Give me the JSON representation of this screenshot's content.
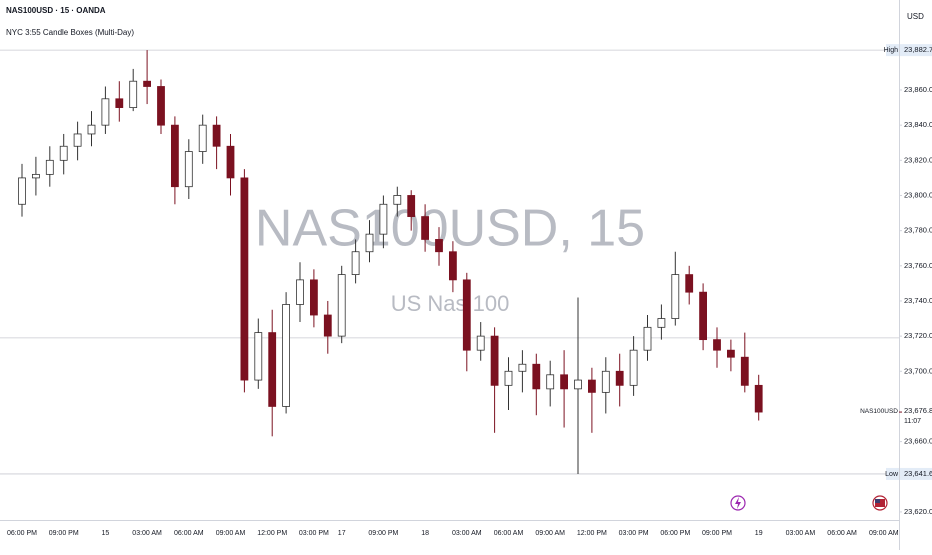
{
  "chart_data": {
    "type": "candlestick",
    "title": "NAS100USD · 15 · OANDA",
    "subtitle": "NYC 3:55 Candle Boxes (Multi-Day)",
    "watermark": "NAS100USD, 15",
    "watermark_subtitle": "US Nas 100",
    "currency": "USD",
    "categories": [
      "06:00 PM",
      null,
      null,
      "09:00 PM",
      null,
      null,
      "15",
      null,
      null,
      "03:00 AM",
      null,
      null,
      "06:00 AM",
      null,
      null,
      "09:00 AM",
      null,
      null,
      "12:00 PM",
      null,
      null,
      "03:00 PM",
      null,
      "17",
      null,
      null,
      "09:00 PM",
      null,
      null,
      "18",
      null,
      null,
      "03:00 AM",
      null,
      null,
      "06:00 AM",
      null,
      null,
      "09:00 AM",
      null,
      null,
      "12:00 PM",
      null,
      null,
      "03:00 PM",
      null,
      null,
      "06:00 PM",
      null,
      null,
      "09:00 PM",
      null,
      null,
      "19",
      null,
      null,
      "03:00 AM",
      null,
      null,
      "06:00 AM",
      null,
      null,
      "09:00 AM",
      null
    ],
    "open": [
      23795,
      23810,
      23812,
      23820,
      23828,
      23835,
      23840,
      23855,
      23850,
      23865,
      23862,
      23840,
      23805,
      23825,
      23840,
      23828,
      23810,
      23695,
      23722,
      23680,
      23738,
      23752,
      23732,
      23720,
      23755,
      23768,
      23778,
      23795,
      23800,
      23788,
      23775,
      23768,
      23752,
      23712,
      23720,
      23692,
      23700,
      23704,
      23690,
      23698,
      23690,
      23695,
      23688,
      23700,
      23692,
      23712,
      23725,
      23730,
      23755,
      23745,
      23718,
      23712,
      23708,
      23692,
      null,
      null,
      null,
      null,
      null,
      null,
      null,
      null,
      null,
      null
    ],
    "high": [
      23818,
      23822,
      23828,
      23835,
      23842,
      23848,
      23862,
      23865,
      23872,
      23882.7,
      23866,
      23845,
      23832,
      23846,
      23845,
      23835,
      23815,
      23730,
      23735,
      23745,
      23762,
      23758,
      23740,
      23760,
      23775,
      23786,
      23800,
      23805,
      23803,
      23795,
      23782,
      23774,
      23756,
      23728,
      23725,
      23708,
      23712,
      23710,
      23706,
      23712,
      23742,
      23702,
      23708,
      23710,
      23720,
      23732,
      23738,
      23768,
      23760,
      23750,
      23725,
      23718,
      23722,
      23698,
      null,
      null,
      null,
      null,
      null,
      null,
      null,
      null,
      null,
      null
    ],
    "low": [
      23788,
      23800,
      23805,
      23812,
      23820,
      23828,
      23835,
      23842,
      23848,
      23852,
      23835,
      23795,
      23798,
      23818,
      23815,
      23800,
      23688,
      23690,
      23663,
      23676,
      23728,
      23725,
      23710,
      23716,
      23750,
      23762,
      23770,
      23788,
      23780,
      23768,
      23760,
      23745,
      23700,
      23706,
      23665,
      23678,
      23688,
      23675,
      23680,
      23668,
      23641.6,
      23665,
      23676,
      23680,
      23686,
      23706,
      23718,
      23726,
      23738,
      23712,
      23702,
      23700,
      23688,
      23672,
      null,
      null,
      null,
      null,
      null,
      null,
      null,
      null,
      null,
      null
    ],
    "close": [
      23810,
      23812,
      23820,
      23828,
      23835,
      23840,
      23855,
      23850,
      23865,
      23862,
      23840,
      23805,
      23825,
      23840,
      23828,
      23810,
      23695,
      23722,
      23680,
      23738,
      23752,
      23732,
      23720,
      23755,
      23768,
      23778,
      23795,
      23800,
      23788,
      23775,
      23768,
      23752,
      23712,
      23720,
      23692,
      23700,
      23704,
      23690,
      23698,
      23690,
      23695,
      23688,
      23700,
      23692,
      23712,
      23725,
      23730,
      23755,
      23745,
      23718,
      23712,
      23708,
      23692,
      23676.8,
      null,
      null,
      null,
      null,
      null,
      null,
      null,
      null,
      null,
      null
    ],
    "up_color": "#ffffff",
    "down_color": "#7b1120",
    "ylim": [
      23615.4,
      23911.2
    ],
    "yticks": [
      {
        "value": 23620,
        "label": "23,620.0"
      },
      {
        "value": 23660,
        "label": "23,660.0"
      },
      {
        "value": 23700,
        "label": "23,700.0"
      },
      {
        "value": 23720,
        "label": "23,720.0"
      },
      {
        "value": 23740,
        "label": "23,740.0"
      },
      {
        "value": 23760,
        "label": "23,760.0"
      },
      {
        "value": 23780,
        "label": "23,780.0"
      },
      {
        "value": 23800,
        "label": "23,800.0"
      },
      {
        "value": 23820,
        "label": "23,820.0"
      },
      {
        "value": 23840,
        "label": "23,840.0"
      },
      {
        "value": 23860,
        "label": "23,860.0"
      }
    ],
    "reference_lines": [
      23719
    ],
    "markers": [
      {
        "name": "High",
        "value": 23882.7,
        "value_label": "23,882.7"
      },
      {
        "name": "Low",
        "value": 23641.6,
        "value_label": "23,641.6"
      }
    ],
    "last": {
      "name": "NAS100USD",
      "value": 23676.8,
      "value_label": "23,676.8",
      "countdown": "11:07"
    }
  }
}
